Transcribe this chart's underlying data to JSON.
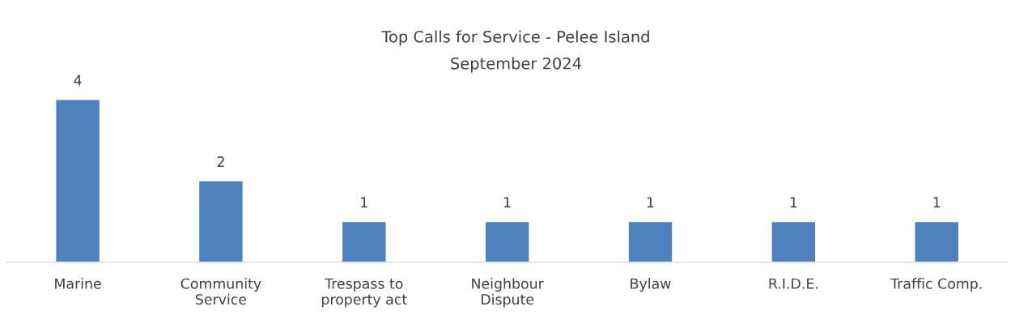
{
  "chart_data": {
    "type": "bar",
    "title": "Top Calls for Service - Pelee Island",
    "subtitle": "September 2024",
    "categories": [
      "Marine",
      "Community\nService",
      "Trespass to\nproperty act",
      "Neighbour\nDispute",
      "Bylaw",
      "R.I.D.E.",
      "Traffic Comp."
    ],
    "values": [
      4,
      2,
      1,
      1,
      1,
      1,
      1
    ],
    "color": "#4f81bd",
    "data_labels": true,
    "grid": false,
    "legend": false,
    "tick_labels": "x"
  }
}
